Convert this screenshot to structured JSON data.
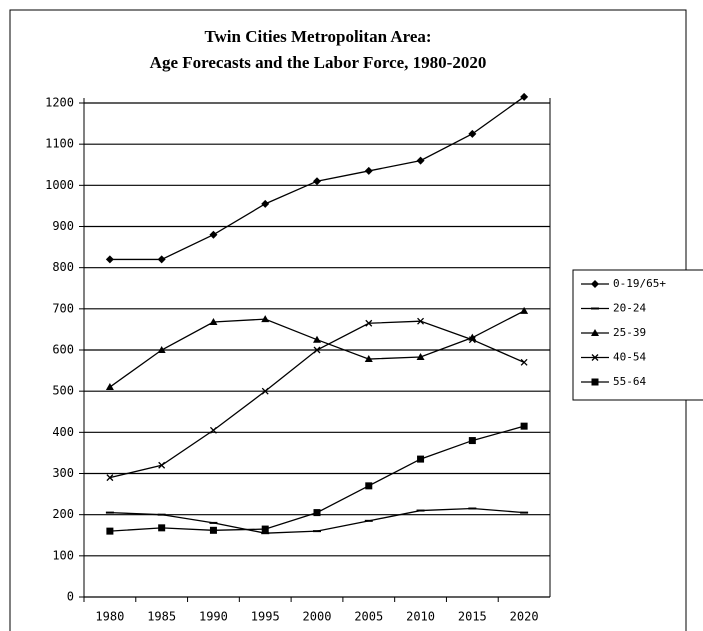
{
  "chart_data": {
    "type": "line",
    "title": "Twin Cities Metropolitan Area:",
    "subtitle": "Age Forecasts and the Labor Force, 1980-2020",
    "categories": [
      "1980",
      "1985",
      "1990",
      "1995",
      "2000",
      "2005",
      "2010",
      "2015",
      "2020"
    ],
    "series": [
      {
        "name": "0-19/65+",
        "color": "#000000",
        "marker": "diamond",
        "values": [
          820,
          820,
          880,
          955,
          1010,
          1035,
          1060,
          1125,
          1215
        ]
      },
      {
        "name": "20-24",
        "color": "#000000",
        "marker": "dash",
        "values": [
          205,
          200,
          180,
          155,
          160,
          185,
          210,
          215,
          205
        ]
      },
      {
        "name": "25-39",
        "color": "#000000",
        "marker": "triangle",
        "values": [
          510,
          600,
          668,
          675,
          625,
          578,
          583,
          630,
          695
        ]
      },
      {
        "name": "40-54",
        "color": "#000000",
        "marker": "cross",
        "values": [
          290,
          320,
          405,
          500,
          600,
          665,
          670,
          625,
          570
        ]
      },
      {
        "name": "55-64",
        "color": "#000000",
        "marker": "square",
        "values": [
          160,
          168,
          162,
          165,
          205,
          270,
          335,
          380,
          415
        ]
      }
    ],
    "ylim": [
      0,
      1200
    ],
    "yticks": [
      0,
      100,
      200,
      300,
      400,
      500,
      600,
      700,
      800,
      900,
      1000,
      1100,
      1200
    ],
    "grid": true,
    "legend": "right"
  }
}
